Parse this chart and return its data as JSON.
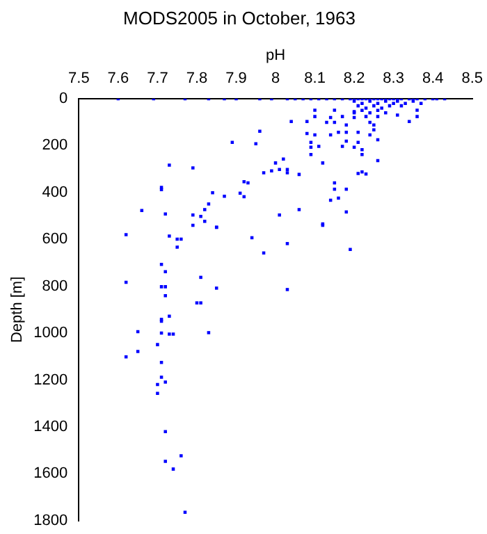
{
  "chart_data": {
    "type": "scatter",
    "title": "MODS2005 in October, 1963",
    "xlabel": "pH",
    "ylabel": "Depth [m]",
    "xlim": [
      7.5,
      8.5
    ],
    "xticks": [
      7.5,
      7.6,
      7.7,
      7.8,
      7.9,
      8,
      8.1,
      8.2,
      8.3,
      8.4,
      8.5
    ],
    "ylim": [
      1800,
      0
    ],
    "yticks": [
      0,
      200,
      400,
      600,
      800,
      1000,
      1200,
      1400,
      1600,
      1800
    ],
    "grid": false,
    "legend": false,
    "marker": "square",
    "series": [
      {
        "color": "#0000ff",
        "x": [
          7.6,
          7.69,
          7.77,
          7.83,
          7.87,
          7.9,
          7.96,
          7.99,
          8.03,
          8.05,
          8.07,
          8.09,
          8.11,
          8.13,
          8.15,
          8.17,
          8.19,
          8.2,
          8.21,
          8.22,
          8.23,
          8.24,
          8.25,
          8.26,
          8.27,
          8.28,
          8.29,
          8.3,
          8.31,
          8.32,
          8.34,
          8.35,
          8.36,
          8.38,
          8.4,
          8.41,
          8.43,
          8.2,
          8.22,
          8.24,
          8.26,
          8.28,
          8.3,
          8.21,
          8.23,
          8.25,
          8.27,
          8.29,
          8.31,
          8.33,
          8.35,
          8.22,
          8.26,
          8.2,
          8.24,
          8.28,
          8.32,
          8.37,
          8.1,
          8.1,
          8.15,
          8.14,
          8.17,
          8.2,
          8.2,
          8.04,
          8.08,
          8.13,
          8.15,
          8.18,
          8.23,
          8.24,
          8.26,
          8.25,
          8.21,
          8.18,
          8.14,
          8.16,
          8.08,
          8.1,
          8.09,
          8.09,
          8.09,
          8.11,
          8.17,
          8.18,
          8.21,
          8.2,
          8.22,
          8.22,
          8.24,
          8.26,
          8.25,
          8.31,
          8.34,
          8.36,
          8.36,
          7.96,
          7.95,
          7.89,
          7.73,
          7.79,
          8.02,
          8.0,
          8.01,
          8.03,
          8.03,
          7.99,
          7.97,
          7.92,
          7.93,
          7.92,
          7.91,
          7.87,
          8.06,
          8.12,
          8.26,
          8.21,
          8.22,
          8.23,
          8.15,
          8.18,
          8.15,
          8.14,
          8.16,
          8.18,
          8.06,
          8.01,
          7.84,
          7.82,
          7.83,
          7.79,
          7.81,
          7.82,
          7.79,
          7.85,
          7.66,
          7.72,
          7.71,
          7.71,
          8.12,
          7.62,
          7.73,
          7.75,
          7.76,
          7.75,
          7.85,
          7.94,
          7.97,
          8.03,
          8.12,
          8.19,
          7.71,
          7.72,
          7.62,
          7.81,
          7.71,
          7.72,
          7.72,
          7.85,
          8.03,
          7.8,
          7.81,
          7.73,
          7.71,
          7.71,
          7.65,
          7.71,
          7.73,
          7.74,
          7.83,
          7.7,
          7.65,
          7.62,
          7.71,
          7.71,
          7.72,
          7.7,
          7.7,
          7.72,
          7.72,
          7.76,
          7.74,
          7.77
        ],
        "values": [
          0,
          0,
          0,
          0,
          0,
          0,
          0,
          0,
          0,
          0,
          0,
          0,
          0,
          0,
          0,
          0,
          0,
          0,
          0,
          0,
          0,
          0,
          0,
          0,
          0,
          0,
          0,
          0,
          0,
          0,
          0,
          0,
          0,
          0,
          0,
          0,
          0,
          10,
          20,
          10,
          20,
          10,
          20,
          30,
          40,
          30,
          40,
          30,
          10,
          20,
          10,
          50,
          50,
          60,
          60,
          60,
          30,
          20,
          49,
          76,
          49,
          80,
          76,
          80,
          55,
          97,
          97,
          101,
          101,
          112,
          76,
          101,
          76,
          112,
          143,
          143,
          154,
          143,
          148,
          154,
          186,
          207,
          238,
          203,
          203,
          181,
          186,
          207,
          217,
          238,
          154,
          175,
          133,
          70,
          97,
          49,
          76,
          139,
          192,
          186,
          283,
          295,
          257,
          274,
          302,
          302,
          316,
          308,
          316,
          354,
          359,
          418,
          403,
          416,
          323,
          274,
          264,
          319,
          312,
          321,
          386,
          386,
          359,
          433,
          424,
          483,
          473,
          496,
          401,
          473,
          449,
          496,
          502,
          523,
          540,
          549,
          477,
          492,
          378,
          388,
          540,
          580,
          586,
          599,
          599,
          633,
          548,
          593,
          658,
          618,
          534,
          643,
          707,
          738,
          783,
          762,
          802,
          802,
          840,
          808,
          814,
          871,
          871,
          928,
          941,
          949,
          994,
          1000,
          1004,
          1004,
          998,
          1049,
          1078,
          1101,
          1125,
          1188,
          1209,
          1219,
          1257,
          1420,
          1547,
          1523,
          1580,
          1764
        ]
      }
    ]
  }
}
